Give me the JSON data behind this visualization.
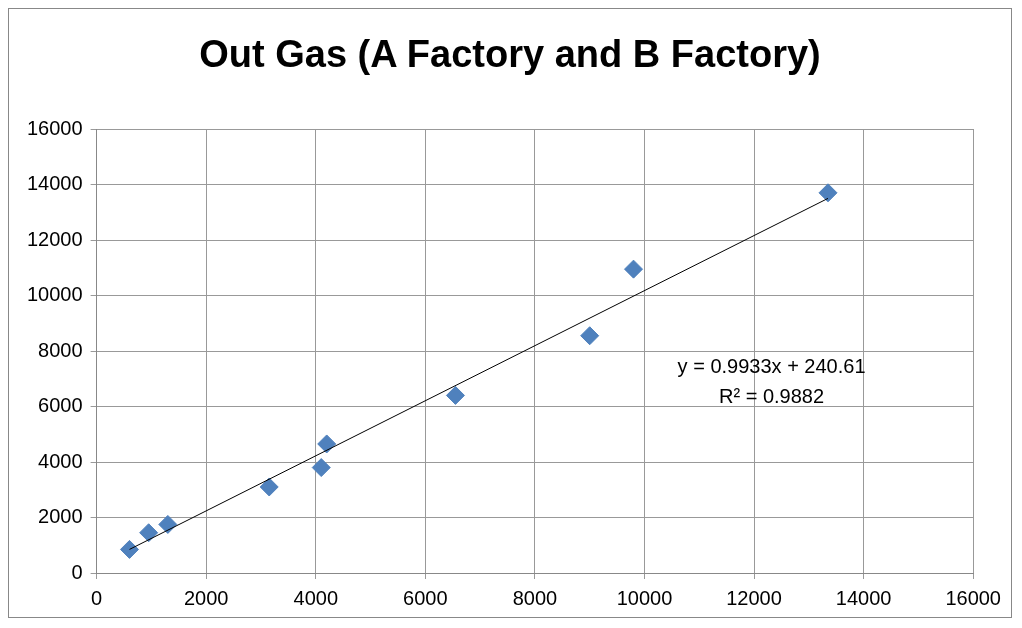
{
  "chart_data": {
    "type": "scatter",
    "title": "Out Gas (A Factory and B Factory)",
    "series": [
      {
        "type": "scatter",
        "marker": "diamond",
        "color": "#4f81bd",
        "x": [
          600,
          950,
          1300,
          3150,
          4100,
          4200,
          6550,
          9000,
          9800,
          13350
        ],
        "values": [
          850,
          1450,
          1750,
          3100,
          3800,
          4650,
          6400,
          8550,
          10950,
          13700
        ]
      },
      {
        "type": "line",
        "marker": "none",
        "color": "#000000",
        "x": [
          600,
          13350
        ],
        "values": [
          850,
          13500
        ]
      }
    ],
    "xlim": [
      0,
      16000
    ],
    "xticks": [
      0,
      2000,
      4000,
      6000,
      8000,
      10000,
      12000,
      14000,
      16000
    ],
    "ylim": [
      0,
      16000
    ],
    "yticks": [
      0,
      2000,
      4000,
      6000,
      8000,
      10000,
      12000,
      14000,
      16000
    ],
    "grid": true,
    "legend": false,
    "annotations": [
      "y = 0.9933x + 240.61",
      "R² = 0.9882"
    ]
  }
}
